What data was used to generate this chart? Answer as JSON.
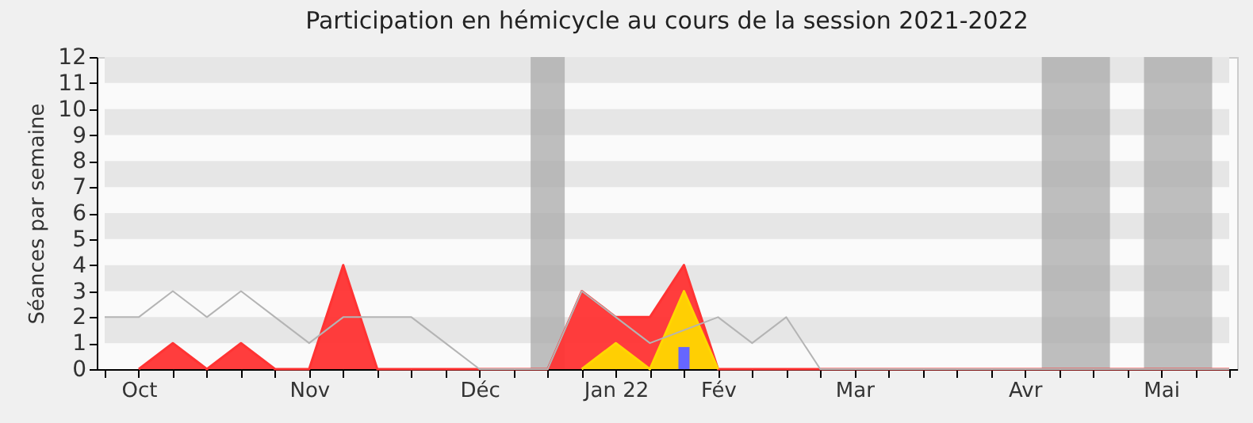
{
  "chart_data": {
    "type": "area",
    "title": "Participation en hémicycle au cours de la session 2021-2022",
    "ylabel": "Séances par semaine",
    "categories": [
      null,
      "Oct",
      null,
      null,
      null,
      null,
      "Nov",
      null,
      null,
      null,
      null,
      "Déc",
      null,
      null,
      null,
      "Jan 22",
      null,
      null,
      "Fév",
      null,
      null,
      null,
      "Mar",
      null,
      null,
      null,
      null,
      "Avr",
      null,
      null,
      null,
      "Mai",
      null,
      null
    ],
    "series": [
      {
        "type": "line",
        "color": "#b4b4b4",
        "values": [
          2,
          2,
          3,
          2,
          3,
          2,
          1,
          2,
          2,
          2,
          1,
          0,
          0,
          0,
          3,
          2,
          1,
          null,
          2,
          1,
          2,
          0,
          0,
          0,
          0,
          0,
          0,
          0,
          0,
          0,
          0,
          0,
          0,
          0
        ]
      },
      {
        "color": "#ff3333",
        "values": [
          null,
          0,
          1,
          0,
          1,
          0,
          0,
          4,
          0,
          0,
          0,
          0,
          0,
          0,
          3,
          2,
          2,
          4,
          0,
          0,
          0,
          0,
          0,
          0,
          0,
          0,
          0,
          0,
          0,
          0,
          0,
          0,
          0,
          0
        ]
      },
      {
        "color": "#ffd700",
        "values": [
          null,
          null,
          null,
          null,
          null,
          null,
          null,
          null,
          null,
          null,
          null,
          null,
          null,
          null,
          0,
          1,
          0,
          3,
          0,
          null,
          null,
          null,
          null,
          null,
          null,
          null,
          null,
          null,
          null,
          null,
          null,
          null,
          null,
          null
        ]
      },
      {
        "type": "bar",
        "color": "#6666ff",
        "values": [
          null,
          null,
          null,
          null,
          null,
          null,
          null,
          null,
          null,
          null,
          null,
          null,
          null,
          null,
          null,
          null,
          null,
          0.85,
          null,
          null,
          null,
          null,
          null,
          null,
          null,
          null,
          null,
          null,
          null,
          null,
          null,
          null,
          null,
          null
        ]
      }
    ],
    "ylim": [
      0,
      12
    ],
    "yticks": [
      0,
      1,
      2,
      3,
      4,
      5,
      6,
      7,
      8,
      9,
      10,
      11,
      12
    ]
  }
}
